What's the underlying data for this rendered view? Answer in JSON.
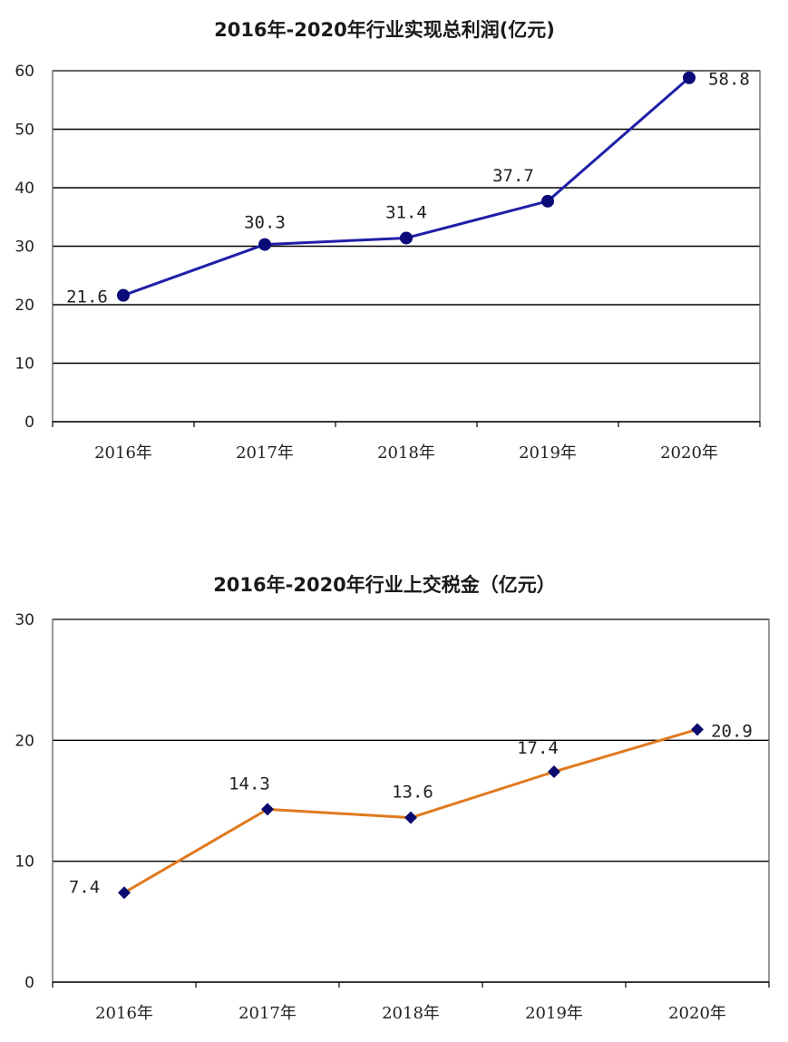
{
  "chart_data": [
    {
      "type": "line",
      "title": "2016年-2020年行业实现总利润(亿元)",
      "categories": [
        "2016年",
        "2017年",
        "2018年",
        "2019年",
        "2020年"
      ],
      "series": [
        {
          "values": [
            21.6,
            30.3,
            31.4,
            37.7,
            58.8
          ]
        }
      ],
      "data_labels": [
        "21.6",
        "30.3",
        "31.4",
        "37.7",
        "58.8"
      ],
      "yticks": [
        "0",
        "10",
        "20",
        "30",
        "40",
        "50",
        "60"
      ],
      "ylim": [
        0,
        60
      ],
      "grid": true,
      "legend": "none",
      "line_color": "#1f1fa8",
      "marker": "circle",
      "marker_color": "#0a0a78"
    },
    {
      "type": "line",
      "title": "2016年-2020年行业上交税金（亿元）",
      "categories": [
        "2016年",
        "2017年",
        "2018年",
        "2019年",
        "2020年"
      ],
      "series": [
        {
          "values": [
            7.4,
            14.3,
            13.6,
            17.4,
            20.9
          ]
        }
      ],
      "data_labels": [
        "7.4",
        "14.3",
        "13.6",
        "17.4",
        "20.9"
      ],
      "yticks": [
        "0",
        "10",
        "20",
        "30"
      ],
      "ylim": [
        0,
        30
      ],
      "grid": true,
      "legend": "none",
      "line_color": "#e07a1f",
      "marker": "diamond",
      "marker_color": "#0a0a6e"
    }
  ]
}
